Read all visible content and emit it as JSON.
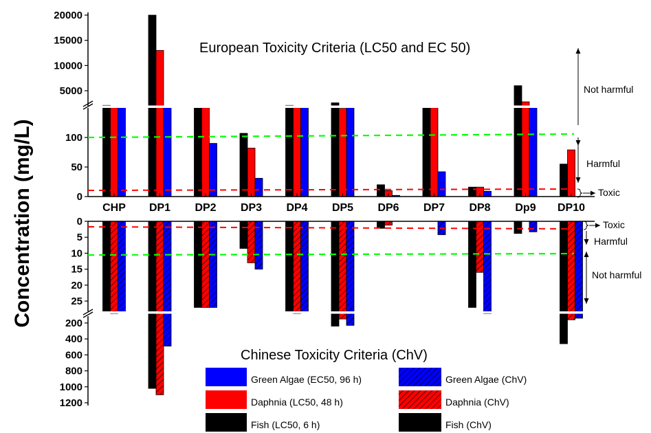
{
  "chart_data": {
    "type": "bar",
    "ylabel": "Concentration (mg/L)",
    "categories": [
      "CHP",
      "DP1",
      "DP2",
      "DP3",
      "DP4",
      "DP5",
      "DP6",
      "DP7",
      "DP8",
      "Dp9",
      "DP10"
    ],
    "upper_panel": {
      "title": "European Toxicity Criteria (LC50 and EC 50)",
      "yticks_lower": [
        "0",
        "50",
        "100"
      ],
      "yticks_upper": [
        "5000",
        "10000",
        "15000",
        "20000"
      ],
      "ylim_lower": [
        0,
        150
      ],
      "ylim_upper": [
        2000,
        20000
      ],
      "series": [
        {
          "name": "Fish (LC50, 6 h)",
          "color": "#000000",
          "values": [
            2100,
            20000,
            2000,
            107,
            2100,
            2600,
            20,
            2000,
            16,
            6000,
            55
          ]
        },
        {
          "name": "Daphnia (LC50, 48 h)",
          "color": "#ff0000",
          "values": [
            2000,
            13000,
            2000,
            82,
            2000,
            1500,
            10,
            2000,
            16,
            2800,
            79
          ]
        },
        {
          "name": "Green Algae (EC50, 96 h)",
          "color": "#0000ff",
          "values": [
            2000,
            1800,
            90,
            31,
            2000,
            1900,
            2,
            42,
            9,
            2000,
            0
          ]
        }
      ],
      "thresholds": [
        {
          "value": 100,
          "color": "#00ff00"
        },
        {
          "value": 10,
          "color": "#ff0000"
        }
      ],
      "zone_labels": [
        "Not harmful",
        "Harmful",
        "Toxic"
      ]
    },
    "lower_panel": {
      "title": "Chinese Toxicity Criteria (ChV)",
      "yticks_upper": [
        "0",
        "5",
        "10",
        "15",
        "20",
        "25"
      ],
      "yticks_lower": [
        "200",
        "400",
        "600",
        "800",
        "1000",
        "1200"
      ],
      "ylim_upper": [
        0,
        28
      ],
      "ylim_lower": [
        80,
        1200
      ],
      "series": [
        {
          "name": "Fish (ChV)",
          "color": "#000000",
          "values": [
            80,
            1020,
            27,
            8.5,
            80,
            240,
            2.2,
            0,
            27,
            3.8,
            460
          ]
        },
        {
          "name": "Daphnia (ChV)",
          "color": "#ff0000",
          "values": [
            85,
            1100,
            27,
            13,
            85,
            150,
            1.2,
            0,
            16,
            0,
            160
          ]
        },
        {
          "name": "Green Algae (ChV)",
          "color": "#0000ff",
          "values": [
            80,
            490,
            27,
            15,
            80,
            230,
            0,
            4.2,
            85,
            3.3,
            140
          ]
        }
      ],
      "thresholds": [
        {
          "value": 1.5,
          "color": "#ff0000"
        },
        {
          "value": 9.8,
          "color": "#00ff00"
        }
      ],
      "zone_labels": [
        "Toxic",
        "Harmful",
        "Not harmful"
      ]
    },
    "legend": [
      {
        "label": "Green Algae (EC50, 96 h)",
        "color": "#0000ff",
        "hatched": false
      },
      {
        "label": "Green Algae (ChV)",
        "color": "#0000ff",
        "hatched": true
      },
      {
        "label": "Daphnia (LC50, 48 h)",
        "color": "#ff0000",
        "hatched": false
      },
      {
        "label": "Daphnia (ChV)",
        "color": "#ff0000",
        "hatched": true
      },
      {
        "label": "Fish (LC50, 6 h)",
        "color": "#000000",
        "hatched": false
      },
      {
        "label": "Fish (ChV)",
        "color": "#000000",
        "hatched": true
      }
    ]
  }
}
